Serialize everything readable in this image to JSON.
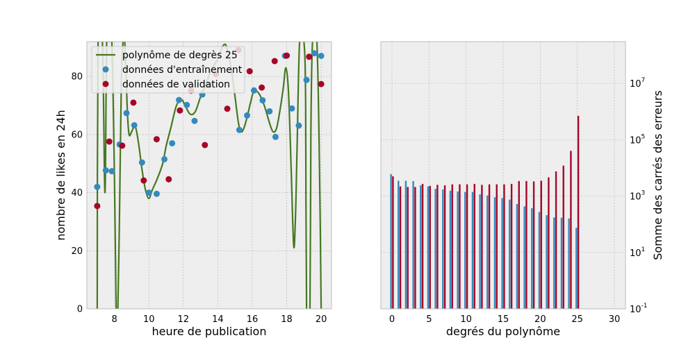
{
  "colors": {
    "axes_bg": "#EEEEEE",
    "grid": "#B2B2B2",
    "spine": "#BCBCBC",
    "fit_line": "#467821",
    "train": "#348ABD",
    "validation": "#A60628"
  },
  "chart_data": [
    {
      "type": "scatter",
      "xlabel": "heure de publication",
      "ylabel": "nombre de likes en 24h",
      "xlim": [
        6.4,
        20.6
      ],
      "ylim": [
        0,
        92
      ],
      "xticks": [
        8,
        10,
        12,
        14,
        16,
        18,
        20
      ],
      "yticks": [
        0,
        20,
        40,
        60,
        80
      ],
      "grid": true,
      "legend_position": "top-left",
      "legend": {
        "line": "polynôme de degrès 25",
        "train": "données d'entraînement",
        "validation": "données de validation"
      },
      "series": [
        {
          "name": "polynôme de degrès 25",
          "kind": "line",
          "points": [
            [
              7.0,
              0
            ],
            [
              7.05,
              92
            ],
            [
              7.3,
              92
            ],
            [
              7.45,
              40
            ],
            [
              7.55,
              92
            ],
            [
              7.7,
              92
            ],
            [
              7.85,
              92
            ],
            [
              8.0,
              45
            ],
            [
              8.1,
              0
            ],
            [
              8.2,
              0
            ],
            [
              8.3,
              35
            ],
            [
              8.4,
              78
            ],
            [
              8.5,
              92
            ],
            [
              8.6,
              92
            ],
            [
              8.75,
              68
            ],
            [
              8.85,
              60
            ],
            [
              9.0,
              61
            ],
            [
              9.2,
              63
            ],
            [
              9.4,
              57
            ],
            [
              9.6,
              48
            ],
            [
              9.8,
              41
            ],
            [
              10.0,
              38
            ],
            [
              10.2,
              41
            ],
            [
              10.5,
              45
            ],
            [
              10.8,
              50
            ],
            [
              11.0,
              56
            ],
            [
              11.3,
              63
            ],
            [
              11.6,
              70
            ],
            [
              11.9,
              72
            ],
            [
              12.1,
              70
            ],
            [
              12.4,
              67
            ],
            [
              12.7,
              68
            ],
            [
              13.0,
              73
            ],
            [
              13.3,
              77
            ],
            [
              13.6,
              82
            ],
            [
              14.0,
              86
            ],
            [
              14.25,
              90
            ],
            [
              14.45,
              91
            ],
            [
              14.6,
              88
            ],
            [
              14.8,
              82
            ],
            [
              15.0,
              73
            ],
            [
              15.2,
              64
            ],
            [
              15.35,
              61
            ],
            [
              15.5,
              62
            ],
            [
              15.7,
              66
            ],
            [
              15.9,
              71
            ],
            [
              16.1,
              75
            ],
            [
              16.4,
              74
            ],
            [
              16.7,
              70
            ],
            [
              17.0,
              64
            ],
            [
              17.2,
              61
            ],
            [
              17.4,
              62
            ],
            [
              17.6,
              68
            ],
            [
              17.8,
              76
            ],
            [
              17.95,
              83
            ],
            [
              18.1,
              75
            ],
            [
              18.25,
              50
            ],
            [
              18.4,
              22
            ],
            [
              18.5,
              30
            ],
            [
              18.6,
              55
            ],
            [
              18.75,
              92
            ],
            [
              19.0,
              92
            ],
            [
              19.1,
              70
            ],
            [
              19.15,
              0
            ],
            [
              19.35,
              0
            ],
            [
              19.4,
              60
            ],
            [
              19.5,
              92
            ],
            [
              19.75,
              92
            ],
            [
              19.9,
              50
            ],
            [
              20.0,
              0
            ]
          ]
        },
        {
          "name": "données d'entraînement",
          "kind": "points",
          "points": [
            [
              7.0,
              42
            ],
            [
              7.5,
              47.7
            ],
            [
              7.85,
              47.4
            ],
            [
              8.3,
              56.6
            ],
            [
              8.7,
              67.4
            ],
            [
              9.15,
              63.2
            ],
            [
              9.6,
              50.4
            ],
            [
              10.0,
              40
            ],
            [
              10.45,
              39.6
            ],
            [
              10.9,
              51.5
            ],
            [
              11.35,
              57
            ],
            [
              11.75,
              71.9
            ],
            [
              12.2,
              70.2
            ],
            [
              12.65,
              64.7
            ],
            [
              13.1,
              73.8
            ],
            [
              13.5,
              77
            ],
            [
              15.25,
              61.6
            ],
            [
              15.7,
              66.6
            ],
            [
              16.1,
              75.2
            ],
            [
              16.6,
              71.8
            ],
            [
              17.0,
              68
            ],
            [
              17.35,
              59.2
            ],
            [
              17.9,
              87.1
            ],
            [
              18.3,
              69
            ],
            [
              18.7,
              63.1
            ],
            [
              19.15,
              78.8
            ],
            [
              19.6,
              88
            ],
            [
              20.0,
              87.1
            ]
          ]
        },
        {
          "name": "données de validation",
          "kind": "points",
          "points": [
            [
              7.0,
              35.4
            ],
            [
              7.7,
              57.6
            ],
            [
              8.45,
              56.2
            ],
            [
              9.1,
              71
            ],
            [
              9.7,
              44.2
            ],
            [
              10.45,
              58.4
            ],
            [
              11.15,
              44.6
            ],
            [
              11.8,
              68.3
            ],
            [
              12.45,
              75.1
            ],
            [
              13.25,
              56.4
            ],
            [
              13.9,
              80.8
            ],
            [
              14.55,
              68.9
            ],
            [
              15.2,
              89.1
            ],
            [
              15.85,
              81.8
            ],
            [
              16.55,
              76.2
            ],
            [
              17.3,
              85.3
            ],
            [
              18.0,
              87.2
            ],
            [
              19.3,
              86.8
            ],
            [
              20.0,
              77.4
            ]
          ]
        }
      ]
    },
    {
      "type": "bar",
      "xlabel": "degrés du polynôme",
      "ylabel": "Somme des carrés des erreurs",
      "yscale": "log",
      "xlim": [
        -1.5,
        31.5
      ],
      "ylim": [
        0.1,
        300000000
      ],
      "xticks": [
        0,
        5,
        10,
        15,
        20,
        25,
        30
      ],
      "yticks": [
        {
          "value": 0.1,
          "mantissa": "10",
          "exp": "-1"
        },
        {
          "value": 10,
          "mantissa": "10",
          "exp": "1"
        },
        {
          "value": 1000,
          "mantissa": "10",
          "exp": "3"
        },
        {
          "value": 100000,
          "mantissa": "10",
          "exp": "5"
        },
        {
          "value": 10000000,
          "mantissa": "10",
          "exp": "7"
        }
      ],
      "grid": true,
      "categories": [
        0,
        1,
        2,
        3,
        4,
        5,
        6,
        7,
        8,
        9,
        10,
        11,
        12,
        13,
        14,
        15,
        16,
        17,
        18,
        19,
        20,
        21,
        22,
        23,
        24,
        25
      ],
      "series": [
        {
          "name": "train",
          "values": [
            6000,
            3500,
            3500,
            3400,
            2400,
            2200,
            1800,
            1700,
            1550,
            1450,
            1400,
            1400,
            1150,
            1050,
            900,
            850,
            750,
            520,
            430,
            370,
            270,
            210,
            175,
            170,
            160,
            75
          ]
        },
        {
          "name": "validation",
          "values": [
            5000,
            2200,
            2100,
            2100,
            2700,
            2300,
            2500,
            2400,
            2600,
            2600,
            2600,
            2700,
            2500,
            2600,
            2600,
            2600,
            2700,
            3400,
            3400,
            3300,
            3500,
            4600,
            7500,
            12000,
            40000,
            700000
          ]
        }
      ]
    }
  ]
}
